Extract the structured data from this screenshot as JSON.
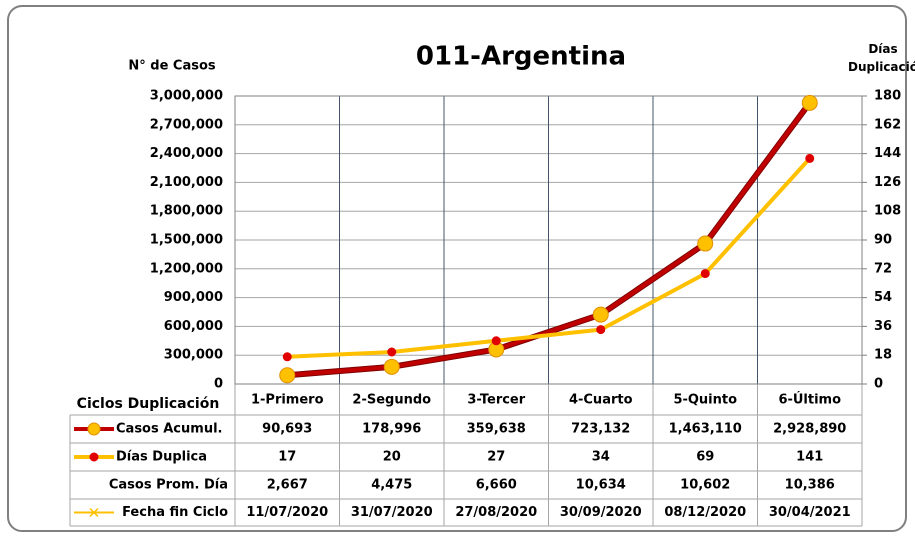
{
  "chart_data": {
    "type": "line",
    "title": "011-Argentina",
    "ylabel": "N° de Casos",
    "y2label": "Días Duplicación",
    "categories_label": "Ciclos Duplicación",
    "categories": [
      "1-Primero",
      "2-Segundo",
      "3-Tercer",
      "4-Cuarto",
      "5-Quinto",
      "6-Último"
    ],
    "ylim": [
      0,
      3000000
    ],
    "yticks": [
      {
        "value": 0,
        "label": "0"
      },
      {
        "value": 300000,
        "label": "300,000"
      },
      {
        "value": 600000,
        "label": "600,000"
      },
      {
        "value": 900000,
        "label": "900,000"
      },
      {
        "value": 1200000,
        "label": "1,200,000"
      },
      {
        "value": 1500000,
        "label": "1,500,000"
      },
      {
        "value": 1800000,
        "label": "1,800,000"
      },
      {
        "value": 2100000,
        "label": "2,100,000"
      },
      {
        "value": 2400000,
        "label": "2,400,000"
      },
      {
        "value": 2700000,
        "label": "2,700,000"
      },
      {
        "value": 3000000,
        "label": "3,000,000"
      }
    ],
    "y2lim": [
      0,
      180
    ],
    "y2ticks": [
      0,
      18,
      36,
      54,
      72,
      90,
      108,
      126,
      144,
      162,
      180
    ],
    "grid": true,
    "series": [
      {
        "name": "Casos Acumul.",
        "color": "#c00000",
        "marker_color": "#ffc000",
        "values": [
          90693,
          178996,
          359638,
          723132,
          1463110,
          2928890
        ],
        "value_labels": [
          "90,693",
          "178,996",
          "359,638",
          "723,132",
          "1,463,110",
          "2,928,890"
        ]
      },
      {
        "name": "Días Duplica",
        "color": "#ffc000",
        "marker_color": "#e00000",
        "axis": "y2",
        "values": [
          17,
          20,
          27,
          34,
          69,
          141
        ],
        "value_labels": [
          "17",
          "20",
          "27",
          "34",
          "69",
          "141"
        ]
      }
    ],
    "extra_rows": [
      {
        "name": "Casos Prom. Día",
        "values": [
          2667,
          4475,
          6660,
          10634,
          10602,
          10386
        ],
        "value_labels": [
          "2,667",
          "4,475",
          "6,660",
          "10,634",
          "10,602",
          "10,386"
        ]
      },
      {
        "name": "Fecha fin Ciclo",
        "color": "#ffc000",
        "labels": [
          "11/07/2020",
          "31/07/2020",
          "27/08/2020",
          "30/09/2020",
          "08/12/2020",
          "30/04/2021"
        ]
      }
    ]
  }
}
